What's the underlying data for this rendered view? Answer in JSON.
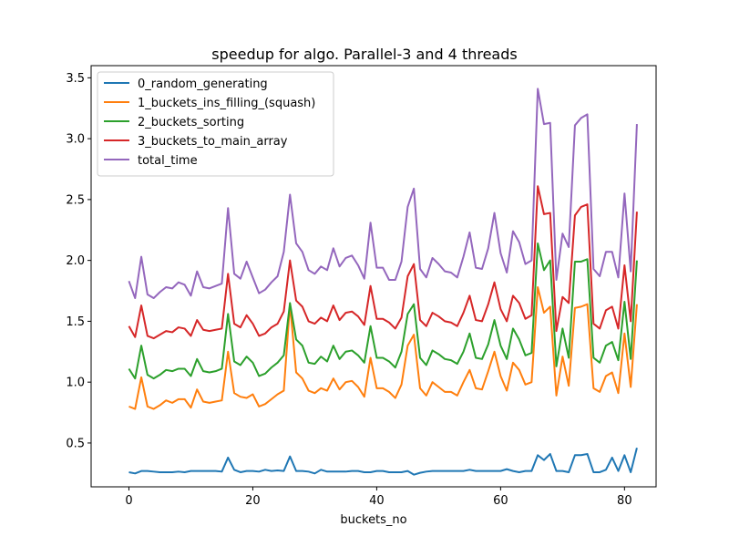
{
  "chart_data": {
    "type": "line",
    "title": "speedup for algo. Parallel-3 and 4 threads",
    "xlabel": "buckets_no",
    "ylabel": "",
    "xlim": [
      -6.1,
      85.1
    ],
    "ylim": [
      0.14,
      3.6
    ],
    "xticks": [
      0,
      20,
      40,
      60,
      80
    ],
    "yticks": [
      0.5,
      1.0,
      1.5,
      2.0,
      2.5,
      3.0,
      3.5
    ],
    "grid": false,
    "legend_position": "upper-left",
    "series": [
      {
        "name": "0_random_generating",
        "color": "#1f77b4",
        "values": [
          0.26,
          0.25,
          0.27,
          0.27,
          0.265,
          0.26,
          0.26,
          0.26,
          0.265,
          0.26,
          0.27,
          0.27,
          0.27,
          0.27,
          0.27,
          0.265,
          0.38,
          0.28,
          0.26,
          0.27,
          0.27,
          0.265,
          0.28,
          0.27,
          0.275,
          0.27,
          0.39,
          0.27,
          0.27,
          0.265,
          0.25,
          0.28,
          0.265,
          0.265,
          0.265,
          0.265,
          0.27,
          0.27,
          0.26,
          0.26,
          0.27,
          0.27,
          0.26,
          0.26,
          0.26,
          0.27,
          0.24,
          0.255,
          0.265,
          0.27,
          0.27,
          0.27,
          0.27,
          0.27,
          0.27,
          0.28,
          0.27,
          0.27,
          0.27,
          0.27,
          0.27,
          0.285,
          0.27,
          0.26,
          0.27,
          0.27,
          0.4,
          0.36,
          0.41,
          0.27,
          0.27,
          0.26,
          0.4,
          0.4,
          0.41,
          0.26,
          0.26,
          0.28,
          0.38,
          0.27,
          0.4,
          0.26,
          0.46
        ]
      },
      {
        "name": "1_buckets_ins_filling_(squash)",
        "color": "#ff7f0e",
        "values": [
          0.8,
          0.78,
          1.04,
          0.8,
          0.78,
          0.81,
          0.85,
          0.83,
          0.86,
          0.86,
          0.79,
          0.94,
          0.84,
          0.83,
          0.84,
          0.85,
          1.25,
          0.91,
          0.88,
          0.87,
          0.9,
          0.8,
          0.82,
          0.86,
          0.9,
          0.93,
          1.64,
          1.08,
          1.03,
          0.93,
          0.91,
          0.95,
          0.93,
          1.03,
          0.94,
          1.0,
          1.01,
          0.96,
          0.88,
          1.2,
          0.95,
          0.95,
          0.92,
          0.87,
          0.98,
          1.3,
          1.39,
          0.95,
          0.89,
          1.0,
          0.96,
          0.92,
          0.92,
          0.89,
          1.0,
          1.1,
          0.95,
          0.94,
          1.09,
          1.25,
          1.05,
          0.93,
          1.16,
          1.1,
          0.98,
          1.0,
          1.78,
          1.57,
          1.62,
          0.89,
          1.21,
          0.97,
          1.61,
          1.62,
          1.64,
          0.95,
          0.92,
          1.05,
          1.08,
          0.91,
          1.4,
          0.96,
          1.64
        ]
      },
      {
        "name": "2_buckets_sorting",
        "color": "#2ca02c",
        "values": [
          1.11,
          1.03,
          1.3,
          1.06,
          1.03,
          1.06,
          1.1,
          1.09,
          1.11,
          1.11,
          1.05,
          1.19,
          1.09,
          1.08,
          1.09,
          1.11,
          1.56,
          1.17,
          1.14,
          1.21,
          1.16,
          1.05,
          1.07,
          1.12,
          1.16,
          1.22,
          1.65,
          1.35,
          1.3,
          1.16,
          1.15,
          1.21,
          1.17,
          1.3,
          1.19,
          1.25,
          1.26,
          1.22,
          1.16,
          1.46,
          1.2,
          1.2,
          1.17,
          1.12,
          1.25,
          1.56,
          1.64,
          1.2,
          1.14,
          1.26,
          1.23,
          1.19,
          1.18,
          1.15,
          1.25,
          1.4,
          1.2,
          1.19,
          1.31,
          1.51,
          1.3,
          1.19,
          1.44,
          1.35,
          1.22,
          1.24,
          2.14,
          1.92,
          2.0,
          1.13,
          1.44,
          1.2,
          1.99,
          1.99,
          2.01,
          1.2,
          1.16,
          1.3,
          1.33,
          1.18,
          1.66,
          1.19,
          2.0
        ]
      },
      {
        "name": "3_buckets_to_main_array",
        "color": "#d62728",
        "values": [
          1.46,
          1.37,
          1.63,
          1.38,
          1.36,
          1.39,
          1.42,
          1.41,
          1.45,
          1.44,
          1.38,
          1.51,
          1.43,
          1.42,
          1.43,
          1.44,
          1.89,
          1.48,
          1.45,
          1.55,
          1.48,
          1.38,
          1.4,
          1.45,
          1.48,
          1.58,
          2.0,
          1.67,
          1.62,
          1.5,
          1.48,
          1.53,
          1.5,
          1.63,
          1.51,
          1.57,
          1.58,
          1.54,
          1.47,
          1.79,
          1.52,
          1.52,
          1.49,
          1.44,
          1.53,
          1.87,
          1.97,
          1.51,
          1.46,
          1.57,
          1.54,
          1.5,
          1.49,
          1.46,
          1.57,
          1.71,
          1.51,
          1.5,
          1.64,
          1.82,
          1.6,
          1.5,
          1.71,
          1.65,
          1.52,
          1.55,
          2.61,
          2.38,
          2.39,
          1.42,
          1.7,
          1.65,
          2.37,
          2.44,
          2.46,
          1.48,
          1.44,
          1.59,
          1.62,
          1.44,
          1.96,
          1.5,
          2.4
        ]
      },
      {
        "name": "total_time",
        "color": "#9467bd",
        "values": [
          1.83,
          1.69,
          2.03,
          1.72,
          1.69,
          1.74,
          1.78,
          1.77,
          1.82,
          1.8,
          1.71,
          1.91,
          1.78,
          1.77,
          1.79,
          1.81,
          2.43,
          1.89,
          1.85,
          1.99,
          1.86,
          1.73,
          1.76,
          1.82,
          1.87,
          2.07,
          2.54,
          2.14,
          2.07,
          1.92,
          1.89,
          1.95,
          1.92,
          2.1,
          1.95,
          2.02,
          2.04,
          1.96,
          1.85,
          2.31,
          1.94,
          1.94,
          1.84,
          1.84,
          1.99,
          2.44,
          2.59,
          1.93,
          1.86,
          2.02,
          1.97,
          1.91,
          1.9,
          1.86,
          2.03,
          2.23,
          1.94,
          1.93,
          2.1,
          2.39,
          2.06,
          1.9,
          2.24,
          2.15,
          1.97,
          2.0,
          3.41,
          3.12,
          3.13,
          1.84,
          2.22,
          2.11,
          3.11,
          3.17,
          3.2,
          1.93,
          1.87,
          2.07,
          2.07,
          1.86,
          2.55,
          1.91,
          3.12
        ]
      }
    ]
  }
}
